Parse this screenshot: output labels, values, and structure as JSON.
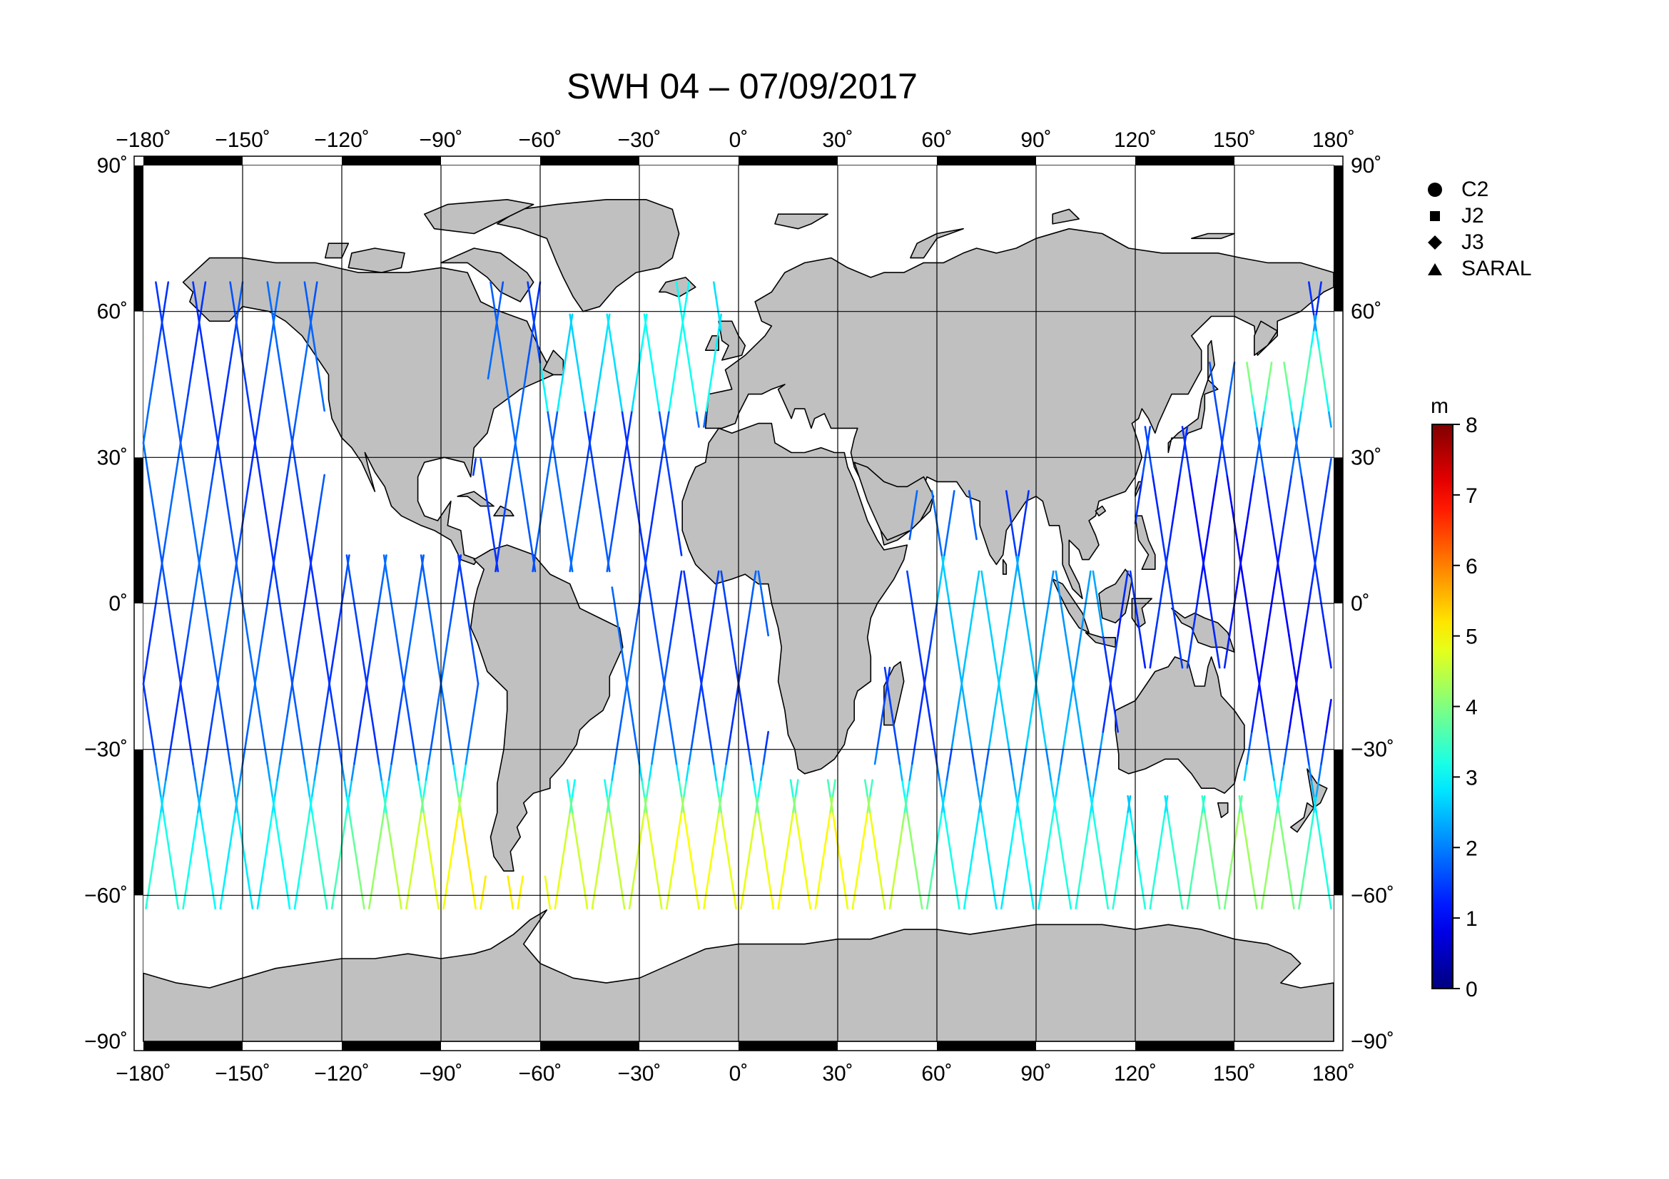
{
  "title": "SWH 04 – 07/09/2017",
  "map": {
    "projection": "equirectangular",
    "lon_range": [
      -180,
      180
    ],
    "lat_range": [
      -90,
      90
    ],
    "lon_ticks": [
      "−180",
      "−150",
      "−120",
      "−90",
      "−60",
      "−30",
      "0",
      "30",
      "60",
      "90",
      "120",
      "150",
      "180"
    ],
    "lat_ticks": [
      "90",
      "60",
      "30",
      "0",
      "−30",
      "−60",
      "−90"
    ],
    "degree_mark": "˚",
    "grid": true,
    "land_color": "#c0c0c0",
    "coast_color": "#000000"
  },
  "legend": {
    "items": [
      {
        "label": "C2",
        "symbol": "circle"
      },
      {
        "label": "J2",
        "symbol": "square"
      },
      {
        "label": "J3",
        "symbol": "diamond"
      },
      {
        "label": "SARAL",
        "symbol": "triangle"
      }
    ]
  },
  "colorbar": {
    "unit": "m",
    "min": 0,
    "max": 8,
    "ticks": [
      "0",
      "1",
      "2",
      "3",
      "4",
      "5",
      "6",
      "7",
      "8"
    ],
    "colormap": "jet"
  }
}
